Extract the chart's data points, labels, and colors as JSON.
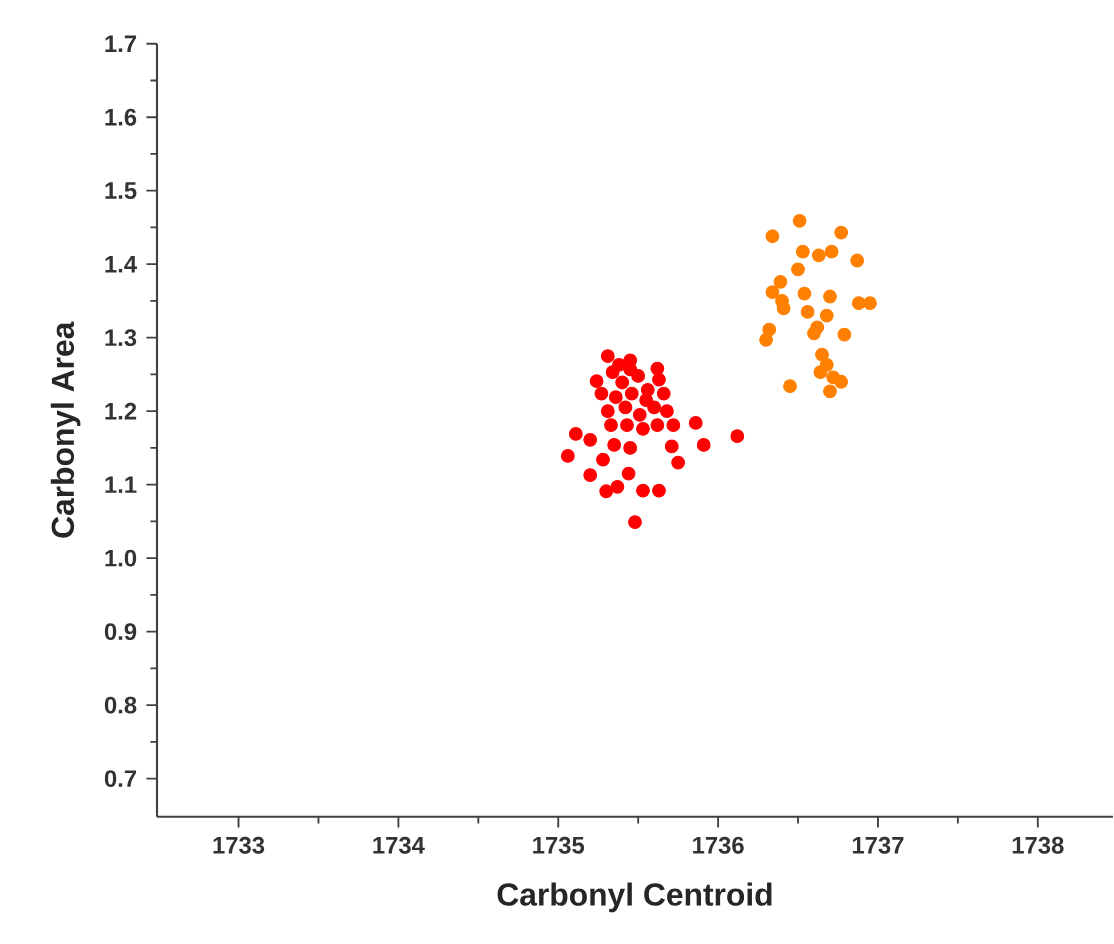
{
  "chart_data": {
    "type": "scatter",
    "xlabel": "Carbonyl Centroid",
    "ylabel": "Carbonyl Area",
    "xlim": [
      1732.49,
      1738.47
    ],
    "ylim": [
      0.648,
      1.7
    ],
    "xticks": [
      1733,
      1734,
      1735,
      1736,
      1737,
      1738
    ],
    "yticks": [
      0.7,
      0.8,
      0.9,
      {
        "value": 1.0,
        "label": "1.0"
      },
      1.1,
      1.2,
      1.3,
      1.4,
      1.5,
      1.6,
      1.7
    ],
    "series": [
      {
        "color": "#ff0000",
        "x": [
          1735.06,
          1735.11,
          1735.2,
          1735.28,
          1735.2,
          1735.3,
          1735.37,
          1735.44,
          1735.48,
          1735.53,
          1735.63,
          1735.35,
          1735.45,
          1735.71,
          1735.75,
          1735.86,
          1735.91,
          1736.12,
          1735.31,
          1735.45,
          1735.24,
          1735.34,
          1735.4,
          1735.5,
          1735.63,
          1735.27,
          1735.36,
          1735.46,
          1735.56,
          1735.66,
          1735.31,
          1735.42,
          1735.51,
          1735.6,
          1735.68,
          1735.72,
          1735.53,
          1735.62,
          1735.43,
          1735.38,
          1735.55,
          1735.62,
          1735.33,
          1735.45
        ],
        "values": [
          1.139,
          1.169,
          1.161,
          1.134,
          1.113,
          1.091,
          1.097,
          1.115,
          1.049,
          1.092,
          1.092,
          1.154,
          1.15,
          1.152,
          1.13,
          1.184,
          1.154,
          1.166,
          1.275,
          1.269,
          1.241,
          1.253,
          1.239,
          1.248,
          1.243,
          1.224,
          1.219,
          1.224,
          1.229,
          1.224,
          1.2,
          1.205,
          1.195,
          1.205,
          1.2,
          1.181,
          1.176,
          1.181,
          1.181,
          1.263,
          1.215,
          1.258,
          1.181,
          1.257
        ]
      },
      {
        "color": "#ff8000",
        "x": [
          1736.34,
          1736.51,
          1736.53,
          1736.63,
          1736.71,
          1736.77,
          1736.87,
          1736.5,
          1736.39,
          1736.34,
          1736.4,
          1736.41,
          1736.54,
          1736.56,
          1736.7,
          1736.68,
          1736.88,
          1736.95,
          1736.32,
          1736.3,
          1736.6,
          1736.62,
          1736.79,
          1736.65,
          1736.68,
          1736.64,
          1736.72,
          1736.77,
          1736.7,
          1736.45
        ],
        "values": [
          1.438,
          1.459,
          1.417,
          1.412,
          1.417,
          1.443,
          1.405,
          1.393,
          1.376,
          1.362,
          1.35,
          1.34,
          1.36,
          1.335,
          1.356,
          1.33,
          1.347,
          1.347,
          1.311,
          1.297,
          1.306,
          1.314,
          1.304,
          1.277,
          1.263,
          1.253,
          1.246,
          1.24,
          1.227,
          1.234
        ]
      }
    ]
  }
}
